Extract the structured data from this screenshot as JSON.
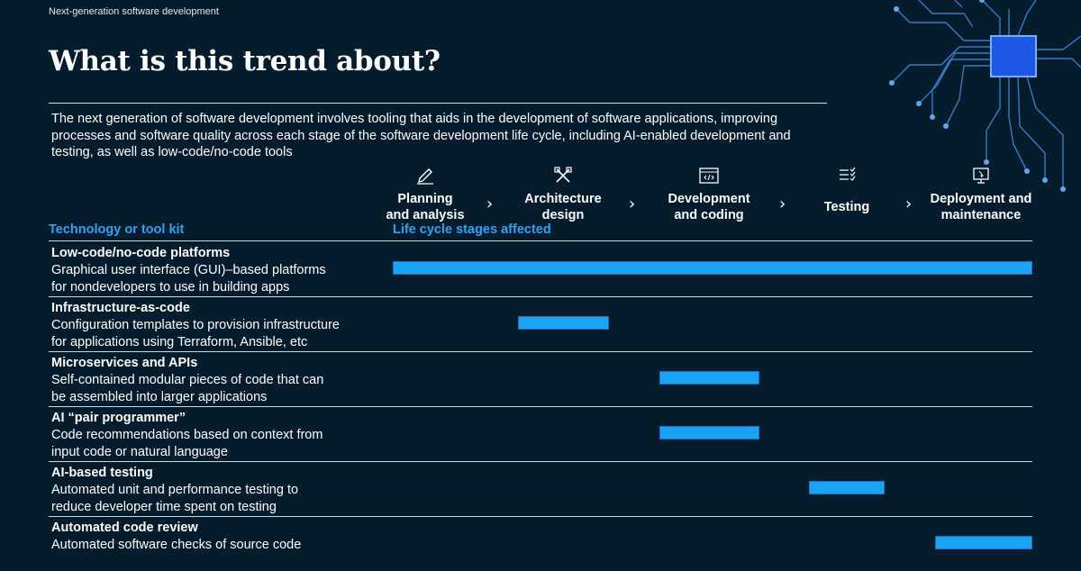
{
  "header": {
    "section_label": "Next-generation software development",
    "title": "What is this trend about?"
  },
  "intro": "The next generation of software development involves tooling that aids in the development of software applications, improving processes and software quality across each stage of the software development life cycle, including AI-enabled development and testing, as well as low-code/no-code tools",
  "stages": [
    {
      "line1": "Planning",
      "line2": "and analysis",
      "icon": "pencil-icon"
    },
    {
      "line1": "Architecture",
      "line2": "design",
      "icon": "tools-icon"
    },
    {
      "line1": "Development",
      "line2": "and coding",
      "icon": "code-window-icon"
    },
    {
      "line1": "Testing",
      "line2": "",
      "icon": "checklist-icon"
    },
    {
      "line1": "Deployment and",
      "line2": "maintenance",
      "icon": "monitor-cursor-icon"
    }
  ],
  "column_headers": {
    "tool_kit": "Technology or tool kit",
    "stages_affected": "Life cycle stages affected"
  },
  "rows": [
    {
      "name": "Low-code/no-code platforms",
      "desc1": "Graphical user interface (GUI)–based platforms",
      "desc2": "for nondevelopers to use in building apps",
      "stages": [
        0,
        4
      ]
    },
    {
      "name": "Infrastructure-as-code",
      "desc1": "Configuration templates to provision infrastructure",
      "desc2": "for applications using Terraform, Ansible, etc",
      "stages": [
        1,
        1
      ]
    },
    {
      "name": "Microservices and APIs",
      "desc1": "Self-contained modular pieces of code that can",
      "desc2": "be assembled into larger applications",
      "stages": [
        2,
        2
      ]
    },
    {
      "name": "AI “pair programmer”",
      "desc1": "Code recommendations based on context from",
      "desc2": "input code or natural language",
      "stages": [
        2,
        2
      ]
    },
    {
      "name": "AI-based testing",
      "desc1": "Automated unit and performance testing to",
      "desc2": "reduce developer time spent on testing",
      "stages": [
        3,
        3
      ]
    },
    {
      "name": "Automated code review",
      "desc1": "Automated software checks of source code",
      "desc2": "",
      "stages": [
        4,
        4
      ]
    }
  ],
  "colors": {
    "background": "#051c2c",
    "accent": "#2aa3f5",
    "bar": "#1aa2f5"
  }
}
